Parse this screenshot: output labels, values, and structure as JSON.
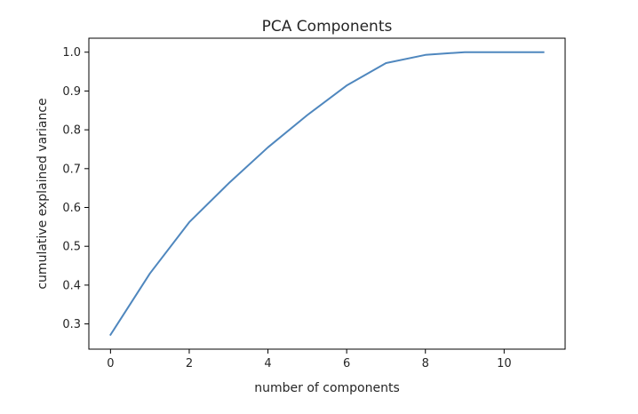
{
  "chart_data": {
    "type": "line",
    "title": "PCA Components",
    "xlabel": "number of components",
    "ylabel": "cumulative explained variance",
    "xlim": [
      -0.55,
      11.55
    ],
    "ylim": [
      0.235,
      1.036
    ],
    "x_ticks": [
      0,
      2,
      4,
      6,
      8,
      10
    ],
    "x_tick_labels": [
      "0",
      "2",
      "4",
      "6",
      "8",
      "10"
    ],
    "y_ticks": [
      0.3,
      0.4,
      0.5,
      0.6,
      0.7,
      0.8,
      0.9,
      1.0
    ],
    "y_tick_labels": [
      "0.3",
      "0.4",
      "0.5",
      "0.6",
      "0.7",
      "0.8",
      "0.9",
      "1.0"
    ],
    "grid": false,
    "series": [
      {
        "color": "#4f87be",
        "x": [
          0,
          1,
          2,
          3,
          4,
          5,
          6,
          7,
          8,
          9,
          10,
          11
        ],
        "values": [
          0.272,
          0.43,
          0.562,
          0.662,
          0.755,
          0.838,
          0.914,
          0.972,
          0.993,
          1.0,
          1.0,
          1.0
        ]
      }
    ]
  }
}
